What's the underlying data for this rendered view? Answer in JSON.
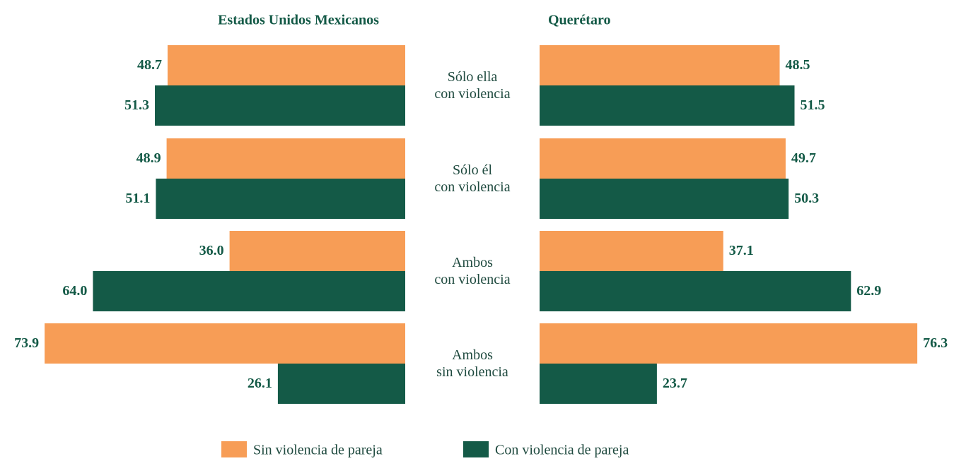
{
  "chart_data": [
    {
      "type": "bar",
      "orientation": "horizontal",
      "x_reversed": true,
      "title": "Estados Unidos Mexicanos",
      "categories": [
        "Sólo ella\ncon violencia",
        "Sólo él\ncon violencia",
        "Ambos\ncon violencia",
        "Ambos\nsin violencia"
      ],
      "xlim": [
        0,
        80
      ],
      "series": [
        {
          "name": "Sin violencia de pareja",
          "color": "#f79d56",
          "values": [
            48.7,
            48.9,
            36.0,
            73.9
          ],
          "value_labels": [
            "48.7",
            "48.9",
            "36.0",
            "73.9"
          ]
        },
        {
          "name": "Con violencia de pareja",
          "color": "#145a47",
          "values": [
            51.3,
            51.1,
            64.0,
            26.1
          ],
          "value_labels": [
            "51.3",
            "51.1",
            "64.0",
            "26.1"
          ]
        }
      ]
    },
    {
      "type": "bar",
      "orientation": "horizontal",
      "x_reversed": false,
      "title": "Querétaro",
      "xlim": [
        0,
        80
      ],
      "series": [
        {
          "color": "#f79d56",
          "values": [
            48.5,
            49.7,
            37.1,
            76.3
          ],
          "value_labels": [
            "48.5",
            "49.7",
            "37.1",
            "76.3"
          ]
        },
        {
          "color": "#145a47",
          "values": [
            51.5,
            50.3,
            62.9,
            23.7
          ],
          "value_labels": [
            "51.5",
            "50.3",
            "62.9",
            "23.7"
          ]
        }
      ]
    }
  ]
}
